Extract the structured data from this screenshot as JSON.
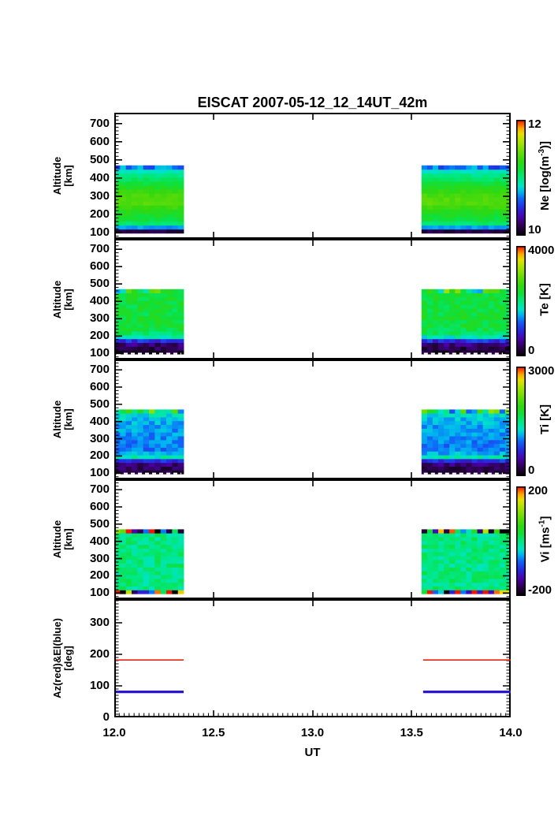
{
  "title": "EISCAT 2007-05-12_12_14UT_42m",
  "xaxis": {
    "label": "UT",
    "tick_labels": [
      "12.0",
      "12.5",
      "13.0",
      "13.5",
      "14.0"
    ],
    "tick_values": [
      12.0,
      12.5,
      13.0,
      13.5,
      14.0
    ],
    "range": [
      12.0,
      14.0
    ],
    "minor_step": 0.025
  },
  "time_blocks": [
    [
      12.0,
      12.35
    ],
    [
      13.55,
      14.0
    ]
  ],
  "colors": {
    "frame": "#000000",
    "background": "#ffffff",
    "az_line": "#e3250f",
    "el_line": "#2a17cf",
    "rainbow_stops": [
      [
        0.0,
        "#000000"
      ],
      [
        0.08,
        "#2c0048"
      ],
      [
        0.16,
        "#4a00a8"
      ],
      [
        0.24,
        "#2828e0"
      ],
      [
        0.32,
        "#1064f8"
      ],
      [
        0.38,
        "#00b4f0"
      ],
      [
        0.43,
        "#00e4c8"
      ],
      [
        0.5,
        "#00e882"
      ],
      [
        0.57,
        "#0ee03c"
      ],
      [
        0.64,
        "#30d810"
      ],
      [
        0.72,
        "#64dc08"
      ],
      [
        0.8,
        "#a0e400"
      ],
      [
        0.88,
        "#e8e000"
      ],
      [
        0.93,
        "#ffa800"
      ],
      [
        1.0,
        "#f41400"
      ]
    ]
  },
  "chart_data": [
    {
      "id": "ne",
      "type": "heatmap",
      "ylabel_top": "Altitude",
      "ylabel_bot": "[km]",
      "yticks": [
        100,
        200,
        300,
        400,
        500,
        600,
        700
      ],
      "yrange": [
        65,
        760
      ],
      "yminor_step": 20,
      "altitude_range_km": [
        96,
        470
      ],
      "colorbar": {
        "min": 10,
        "max": 12,
        "min_label": "10",
        "max_label": "12",
        "label_pre": "Ne [log(m",
        "label_sup": "-3",
        "label_post": ")]"
      },
      "profile_alt_value": [
        [
          96,
          10.02
        ],
        [
          108,
          10.15
        ],
        [
          122,
          10.55
        ],
        [
          136,
          10.9
        ],
        [
          152,
          11.05
        ],
        [
          175,
          11.15
        ],
        [
          205,
          11.2
        ],
        [
          235,
          11.3
        ],
        [
          265,
          11.4
        ],
        [
          295,
          11.38
        ],
        [
          330,
          11.28
        ],
        [
          360,
          11.18
        ],
        [
          390,
          11.08
        ],
        [
          415,
          11.0
        ],
        [
          435,
          10.9
        ],
        [
          452,
          10.78
        ],
        [
          462,
          10.6
        ],
        [
          470,
          10.45
        ]
      ],
      "noise": 0.05,
      "top_speckle": {
        "above_km": 450,
        "amp": 0.15
      }
    },
    {
      "id": "te",
      "type": "heatmap",
      "ylabel_top": "Altitude",
      "ylabel_bot": "[km]",
      "yticks": [
        100,
        200,
        300,
        400,
        500,
        600,
        700
      ],
      "yrange": [
        65,
        760
      ],
      "yminor_step": 20,
      "altitude_range_km": [
        96,
        470
      ],
      "colorbar": {
        "min": 0,
        "max": 4000,
        "min_label": "0",
        "max_label": "4000",
        "label_pre": "Te [K]",
        "label_sup": "",
        "label_post": ""
      },
      "profile_alt_value": [
        [
          96,
          120
        ],
        [
          112,
          250
        ],
        [
          130,
          320
        ],
        [
          150,
          420
        ],
        [
          168,
          800
        ],
        [
          182,
          1300
        ],
        [
          192,
          1700
        ],
        [
          202,
          2000
        ],
        [
          225,
          2200
        ],
        [
          260,
          2300
        ],
        [
          300,
          2320
        ],
        [
          350,
          2280
        ],
        [
          400,
          2300
        ],
        [
          435,
          2320
        ],
        [
          455,
          2350
        ],
        [
          470,
          2300
        ]
      ],
      "noise": 200,
      "top_speckle": {
        "above_km": 448,
        "amp": 800
      },
      "white_dash_km": 99
    },
    {
      "id": "ti",
      "type": "heatmap",
      "ylabel_top": "Altitude",
      "ylabel_bot": "[km]",
      "yticks": [
        100,
        200,
        300,
        400,
        500,
        600,
        700
      ],
      "yrange": [
        65,
        760
      ],
      "yminor_step": 20,
      "altitude_range_km": [
        96,
        470
      ],
      "colorbar": {
        "min": 0,
        "max": 3000,
        "min_label": "0",
        "max_label": "3000",
        "label_pre": "Ti [K]",
        "label_sup": "",
        "label_post": ""
      },
      "profile_alt_value": [
        [
          96,
          120
        ],
        [
          112,
          220
        ],
        [
          135,
          280
        ],
        [
          158,
          350
        ],
        [
          172,
          700
        ],
        [
          185,
          1250
        ],
        [
          198,
          1400
        ],
        [
          212,
          1150
        ],
        [
          240,
          1000
        ],
        [
          280,
          1020
        ],
        [
          330,
          1060
        ],
        [
          380,
          1120
        ],
        [
          420,
          1180
        ],
        [
          445,
          1300
        ],
        [
          458,
          1600
        ],
        [
          470,
          1900
        ]
      ],
      "noise": 140,
      "top_speckle": {
        "above_km": 452,
        "amp": 800
      },
      "white_dash_km": 99
    },
    {
      "id": "vi",
      "type": "heatmap",
      "ylabel_top": "Altitude",
      "ylabel_bot": "[km]",
      "yticks": [
        100,
        200,
        300,
        400,
        500,
        600,
        700
      ],
      "yrange": [
        65,
        760
      ],
      "yminor_step": 20,
      "altitude_range_km": [
        96,
        470
      ],
      "colorbar": {
        "min": -200,
        "max": 200,
        "min_label": "-200",
        "max_label": "200",
        "label_pre": "Vi [ms",
        "label_sup": "-1",
        "label_post": "]"
      },
      "profile_alt_value": [
        [
          96,
          0
        ],
        [
          470,
          0
        ]
      ],
      "noise": 25,
      "top_speckle": {
        "above_km": 437,
        "amp": 240
      },
      "bottom_speckle": {
        "below_km": 116,
        "amp": 280
      }
    },
    {
      "id": "az_el",
      "type": "line",
      "ylabel_top": "Az(red)&El(blue)",
      "ylabel_bot": "[deg]",
      "yticks": [
        0,
        100,
        200,
        300
      ],
      "yrange": [
        0,
        375
      ],
      "yminor_step": 10,
      "series": [
        {
          "name": "Az",
          "color_key": "az_line",
          "value_deg": 182,
          "line_width": 1.6
        },
        {
          "name": "El",
          "color_key": "el_line",
          "value_deg": 81,
          "line_width": 3.2
        }
      ]
    }
  ]
}
